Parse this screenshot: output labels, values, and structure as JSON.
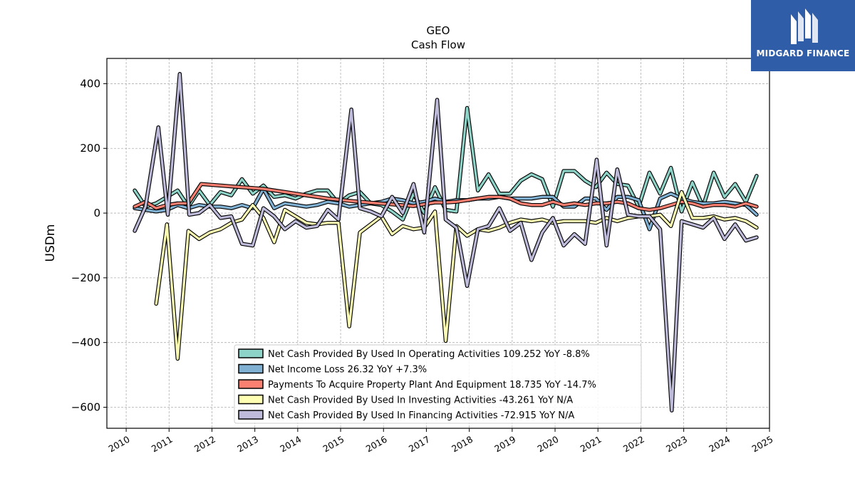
{
  "logo": {
    "text": "MIDGARD FINANCE"
  },
  "chart_data": {
    "type": "line",
    "title": "GEO",
    "subtitle": "Cash Flow",
    "ylabel": "USDm",
    "xlabel": "",
    "xlim": [
      2009.55,
      2025.0
    ],
    "ylim": [
      -665,
      478
    ],
    "yticks": [
      400,
      200,
      0,
      -200,
      -400,
      -600
    ],
    "ytick_labels": [
      "400",
      "200",
      "0",
      "−200",
      "−400",
      "−600"
    ],
    "xticks": [
      2010,
      2011,
      2012,
      2013,
      2014,
      2015,
      2016,
      2017,
      2018,
      2019,
      2020,
      2021,
      2022,
      2023,
      2024,
      2025
    ],
    "xtick_labels": [
      "2010",
      "2011",
      "2012",
      "2013",
      "2014",
      "2015",
      "2016",
      "2017",
      "2018",
      "2019",
      "2020",
      "2021",
      "2022",
      "2023",
      "2024",
      "2025"
    ],
    "grid": true,
    "legend_position": "lower-center",
    "series": [
      {
        "name": "Net Cash Provided By Used In Operating Activities",
        "legend": "Net Cash Provided By Used In Operating Activities  109.252 YoY -8.8%",
        "color": "#8dd3c7",
        "x": [
          2010.2,
          2010.45,
          2010.7,
          2010.95,
          2011.2,
          2011.45,
          2011.7,
          2011.95,
          2012.2,
          2012.45,
          2012.7,
          2012.95,
          2013.2,
          2013.45,
          2013.7,
          2013.95,
          2014.2,
          2014.45,
          2014.7,
          2014.95,
          2015.2,
          2015.45,
          2015.7,
          2015.95,
          2016.2,
          2016.45,
          2016.7,
          2016.95,
          2017.2,
          2017.45,
          2017.7,
          2017.95,
          2018.2,
          2018.45,
          2018.7,
          2018.95,
          2019.2,
          2019.45,
          2019.7,
          2019.95,
          2020.2,
          2020.45,
          2020.7,
          2020.95,
          2021.2,
          2021.45,
          2021.7,
          2021.95,
          2022.2,
          2022.45,
          2022.7,
          2022.95,
          2023.2,
          2023.45,
          2023.7,
          2023.95,
          2024.2,
          2024.45,
          2024.7
        ],
        "y": [
          70,
          20,
          30,
          50,
          70,
          20,
          70,
          25,
          65,
          55,
          105,
          60,
          85,
          50,
          55,
          45,
          60,
          70,
          70,
          30,
          55,
          65,
          30,
          25,
          5,
          -20,
          60,
          0,
          80,
          10,
          5,
          325,
          70,
          120,
          60,
          60,
          100,
          120,
          105,
          20,
          130,
          130,
          100,
          80,
          125,
          90,
          85,
          20,
          125,
          60,
          140,
          5,
          95,
          20,
          125,
          50,
          90,
          35,
          115
        ]
      },
      {
        "name": "Net Income Loss",
        "legend": "Net Income Loss  26.32 YoY +7.3%",
        "color": "#80b1d3",
        "x": [
          2010.2,
          2010.45,
          2010.7,
          2010.95,
          2011.2,
          2011.45,
          2011.7,
          2011.95,
          2012.2,
          2012.45,
          2012.7,
          2012.95,
          2013.2,
          2013.45,
          2013.7,
          2013.95,
          2014.2,
          2014.45,
          2014.7,
          2014.95,
          2015.2,
          2015.45,
          2015.7,
          2015.95,
          2016.2,
          2016.45,
          2016.7,
          2016.95,
          2017.2,
          2017.45,
          2017.7,
          2017.95,
          2018.2,
          2018.45,
          2018.7,
          2018.95,
          2019.2,
          2019.45,
          2019.7,
          2019.95,
          2020.2,
          2020.45,
          2020.7,
          2020.95,
          2021.2,
          2021.45,
          2021.7,
          2021.95,
          2022.2,
          2022.45,
          2022.7,
          2022.95,
          2023.2,
          2023.45,
          2023.7,
          2023.95,
          2024.2,
          2024.45,
          2024.7
        ],
        "y": [
          15,
          10,
          5,
          10,
          25,
          15,
          25,
          20,
          20,
          15,
          25,
          15,
          75,
          15,
          30,
          25,
          20,
          25,
          35,
          30,
          20,
          25,
          30,
          35,
          45,
          40,
          30,
          35,
          45,
          35,
          40,
          40,
          45,
          45,
          50,
          45,
          45,
          45,
          50,
          50,
          20,
          20,
          45,
          45,
          10,
          50,
          50,
          40,
          -50,
          45,
          60,
          45,
          35,
          30,
          30,
          35,
          30,
          25,
          -5
        ]
      },
      {
        "name": "Payments To Acquire Property Plant And Equipment",
        "legend": "Payments To Acquire Property Plant And Equipment  18.735 YoY -14.7%",
        "color": "#fb8072",
        "x": [
          2010.2,
          2010.45,
          2010.7,
          2010.95,
          2011.2,
          2011.45,
          2011.75,
          2012.2,
          2012.7,
          2013.2,
          2013.7,
          2014.2,
          2014.7,
          2015.2,
          2015.7,
          2016.2,
          2016.7,
          2017.2,
          2017.45,
          2017.7,
          2017.95,
          2018.2,
          2018.45,
          2018.7,
          2018.95,
          2019.2,
          2019.45,
          2019.7,
          2019.95,
          2020.2,
          2020.45,
          2020.7,
          2020.95,
          2021.2,
          2021.45,
          2021.7,
          2021.95,
          2022.2,
          2022.45,
          2022.7,
          2022.95,
          2023.2,
          2023.45,
          2023.7,
          2023.95,
          2024.2,
          2024.45,
          2024.7
        ],
        "y": [
          20,
          35,
          15,
          25,
          30,
          30,
          90,
          85,
          80,
          75,
          65,
          55,
          45,
          38,
          32,
          27,
          22,
          33,
          33,
          35,
          40,
          45,
          50,
          50,
          45,
          30,
          25,
          25,
          35,
          25,
          30,
          25,
          30,
          30,
          35,
          30,
          15,
          10,
          15,
          25,
          35,
          30,
          20,
          25,
          25,
          20,
          30,
          20
        ]
      },
      {
        "name": "Net Cash Provided By Used In Investing Activities",
        "legend": "Net Cash Provided By Used In Investing Activities  -43.261 YoY N/A",
        "color": "#ffffb3",
        "x": [
          2010.7,
          2010.95,
          2011.2,
          2011.45,
          2011.7,
          2011.95,
          2012.2,
          2012.45,
          2012.7,
          2012.95,
          2013.2,
          2013.45,
          2013.7,
          2013.95,
          2014.2,
          2014.45,
          2014.7,
          2014.95,
          2015.2,
          2015.45,
          2015.7,
          2015.95,
          2016.2,
          2016.45,
          2016.7,
          2016.95,
          2017.2,
          2017.45,
          2017.7,
          2017.95,
          2018.2,
          2018.45,
          2018.7,
          2018.95,
          2019.2,
          2019.45,
          2019.7,
          2019.95,
          2020.2,
          2020.45,
          2020.7,
          2020.95,
          2021.2,
          2021.45,
          2021.7,
          2021.95,
          2022.2,
          2022.45,
          2022.7,
          2022.95,
          2023.2,
          2023.45,
          2023.7,
          2023.95,
          2024.2,
          2024.45,
          2024.7
        ],
        "y": [
          -280,
          -35,
          -450,
          -55,
          -80,
          -60,
          -50,
          -30,
          -20,
          25,
          -15,
          -90,
          10,
          -10,
          -30,
          -35,
          -30,
          -30,
          -350,
          -60,
          -35,
          -10,
          -65,
          -40,
          -50,
          -45,
          5,
          -395,
          -40,
          -70,
          -50,
          -55,
          -45,
          -30,
          -20,
          -25,
          -20,
          -30,
          -25,
          -25,
          -25,
          -30,
          -15,
          -25,
          -15,
          -10,
          -10,
          -5,
          -40,
          65,
          -15,
          -15,
          -10,
          -20,
          -15,
          -25,
          -45
        ]
      },
      {
        "name": "Net Cash Provided By Used In Financing Activities",
        "legend": "Net Cash Provided By Used In Financing Activities  -72.915 YoY N/A",
        "color": "#bebada",
        "x": [
          2010.2,
          2010.45,
          2010.75,
          2010.97,
          2011.25,
          2011.47,
          2011.7,
          2011.95,
          2012.2,
          2012.45,
          2012.7,
          2012.95,
          2013.2,
          2013.45,
          2013.7,
          2013.95,
          2014.2,
          2014.45,
          2014.7,
          2014.95,
          2015.25,
          2015.45,
          2015.7,
          2015.95,
          2016.2,
          2016.45,
          2016.7,
          2016.95,
          2017.25,
          2017.45,
          2017.7,
          2017.95,
          2018.2,
          2018.45,
          2018.7,
          2018.95,
          2019.2,
          2019.45,
          2019.7,
          2019.95,
          2020.2,
          2020.45,
          2020.7,
          2020.97,
          2021.2,
          2021.45,
          2021.7,
          2021.95,
          2022.2,
          2022.45,
          2022.72,
          2022.95,
          2023.2,
          2023.45,
          2023.7,
          2023.95,
          2024.2,
          2024.45,
          2024.7
        ],
        "y": [
          -55,
          20,
          265,
          -5,
          430,
          -5,
          0,
          25,
          -15,
          -10,
          -95,
          -100,
          15,
          -10,
          -50,
          -25,
          -45,
          -40,
          10,
          -20,
          320,
          15,
          5,
          -10,
          50,
          0,
          90,
          -60,
          350,
          -20,
          -45,
          -225,
          -50,
          -40,
          15,
          -55,
          -30,
          -145,
          -60,
          -15,
          -100,
          -65,
          -95,
          165,
          -100,
          135,
          -5,
          -10,
          -10,
          -50,
          -610,
          -25,
          -35,
          -45,
          -15,
          -80,
          -35,
          -85,
          -75
        ]
      }
    ]
  }
}
